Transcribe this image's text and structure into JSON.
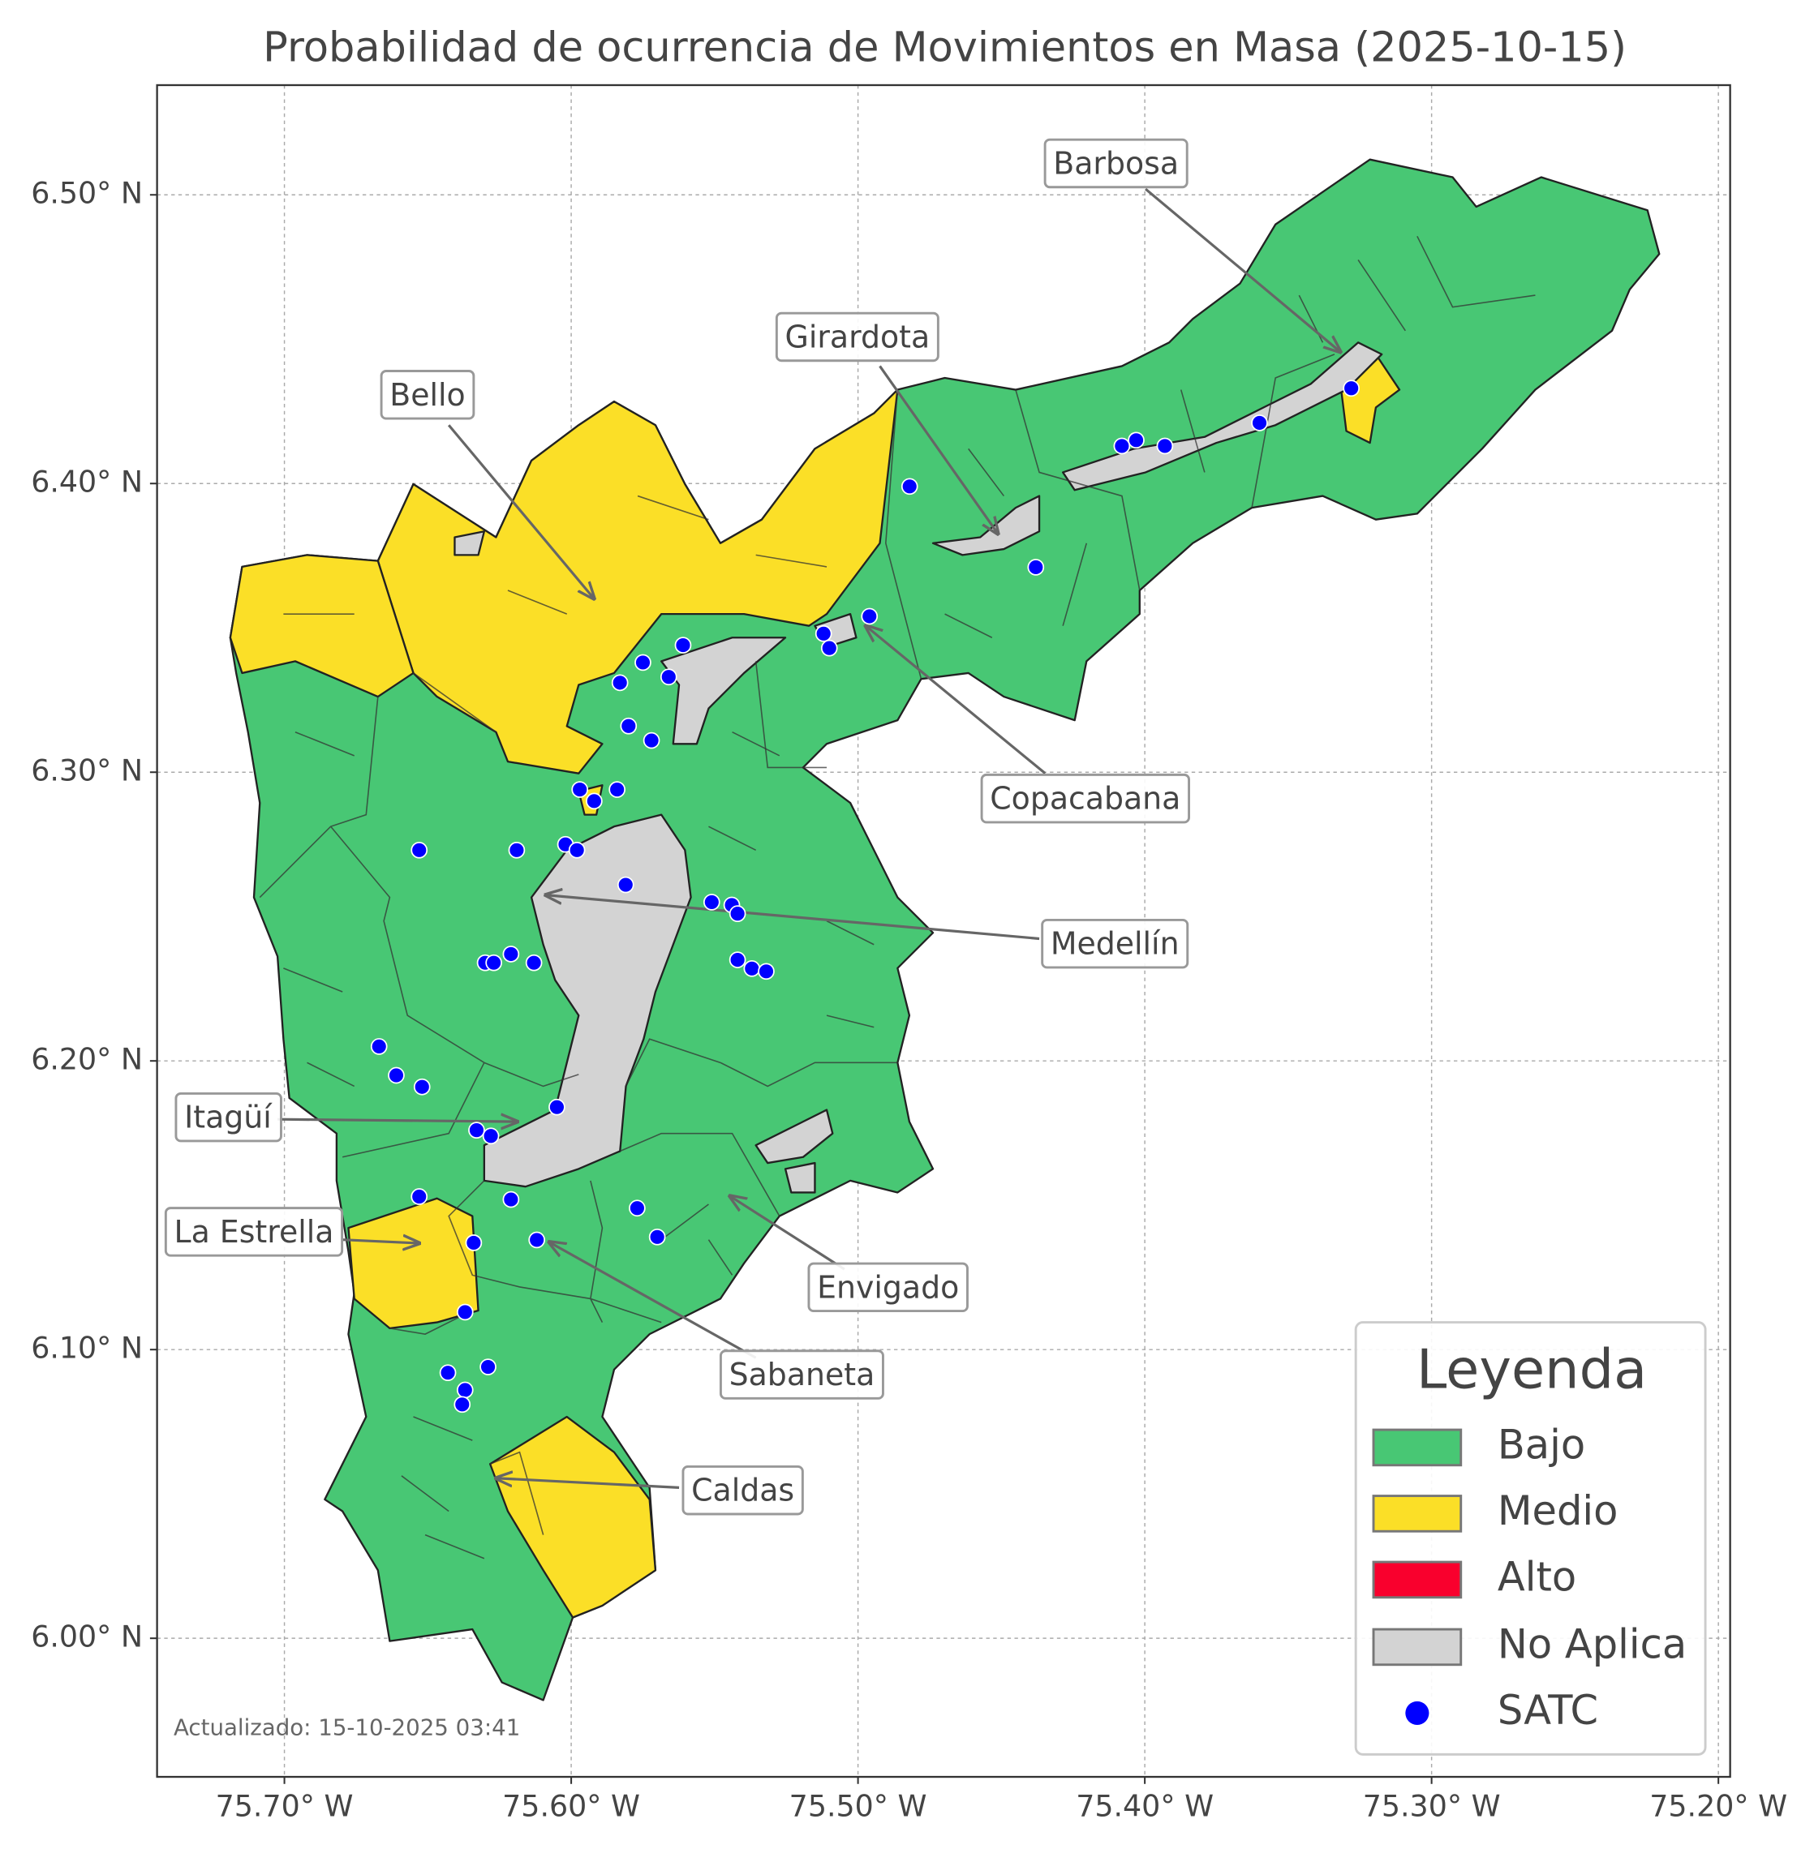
{
  "chart_data": {
    "type": "map",
    "title": "Probabilidad de ocurrencia de Movimientos en Masa (2025-10-15)",
    "xlim": [
      -75.7444,
      -75.1959
    ],
    "ylim": [
      5.952,
      6.538
    ],
    "xticks": [
      {
        "value": -75.7,
        "label": "75.70° W"
      },
      {
        "value": -75.6,
        "label": "75.60° W"
      },
      {
        "value": -75.5,
        "label": "75.50° W"
      },
      {
        "value": -75.4,
        "label": "75.40° W"
      },
      {
        "value": -75.3,
        "label": "75.30° W"
      },
      {
        "value": -75.2,
        "label": "75.20° W"
      }
    ],
    "yticks": [
      {
        "value": 6.0,
        "label": "6.00° N"
      },
      {
        "value": 6.1,
        "label": "6.10° N"
      },
      {
        "value": 6.2,
        "label": "6.20° N"
      },
      {
        "value": 6.3,
        "label": "6.30° N"
      },
      {
        "value": 6.4,
        "label": "6.40° N"
      },
      {
        "value": 6.5,
        "label": "6.50° N"
      }
    ],
    "grid": true,
    "legend": {
      "title": "Leyenda",
      "loc": "lower right",
      "entries": [
        {
          "name": "Bajo",
          "color": "#48c774"
        },
        {
          "name": "Medio",
          "color": "#fbdf27"
        },
        {
          "name": "Alto",
          "color": "#f9002d"
        },
        {
          "name": "No Aplica",
          "color": "#d3d3d3"
        }
      ]
    },
    "series": [
      {
        "name": "SATC",
        "color": "#0000ff",
        "x": [
          -75.328,
          -75.36,
          -75.393,
          -75.403,
          -75.408,
          -75.482,
          -75.438,
          -75.496,
          -75.512,
          -75.51,
          -75.561,
          -75.575,
          -75.566,
          -75.583,
          -75.58,
          -75.572,
          -75.597,
          -75.584,
          -75.592,
          -75.653,
          -75.619,
          -75.602,
          -75.598,
          -75.581,
          -75.551,
          -75.544,
          -75.542,
          -75.542,
          -75.537,
          -75.532,
          -75.621,
          -75.63,
          -75.627,
          -75.613,
          -75.667,
          -75.661,
          -75.652,
          -75.605,
          -75.633,
          -75.628,
          -75.653,
          -75.621,
          -75.577,
          -75.57,
          -75.634,
          -75.612,
          -75.637,
          -75.643,
          -75.629,
          -75.637,
          -75.638
        ],
        "y": [
          6.433,
          6.421,
          6.413,
          6.415,
          6.413,
          6.399,
          6.371,
          6.354,
          6.348,
          6.343,
          6.344,
          6.338,
          6.333,
          6.331,
          6.316,
          6.311,
          6.294,
          6.294,
          6.29,
          6.273,
          6.273,
          6.275,
          6.273,
          6.261,
          6.255,
          6.254,
          6.251,
          6.235,
          6.232,
          6.231,
          6.237,
          6.234,
          6.234,
          6.234,
          6.205,
          6.195,
          6.191,
          6.184,
          6.176,
          6.174,
          6.153,
          6.152,
          6.149,
          6.139,
          6.137,
          6.138,
          6.113,
          6.092,
          6.094,
          6.086,
          6.081
        ]
      }
    ],
    "annotations": [
      "Barbosa",
      "Girardota",
      "Bello",
      "Copacabana",
      "Medellín",
      "Itagüí",
      "La Estrella",
      "Envigado",
      "Sabaneta",
      "Caldas"
    ],
    "footnote": "Actualizado: 15-10-2025 03:41"
  }
}
